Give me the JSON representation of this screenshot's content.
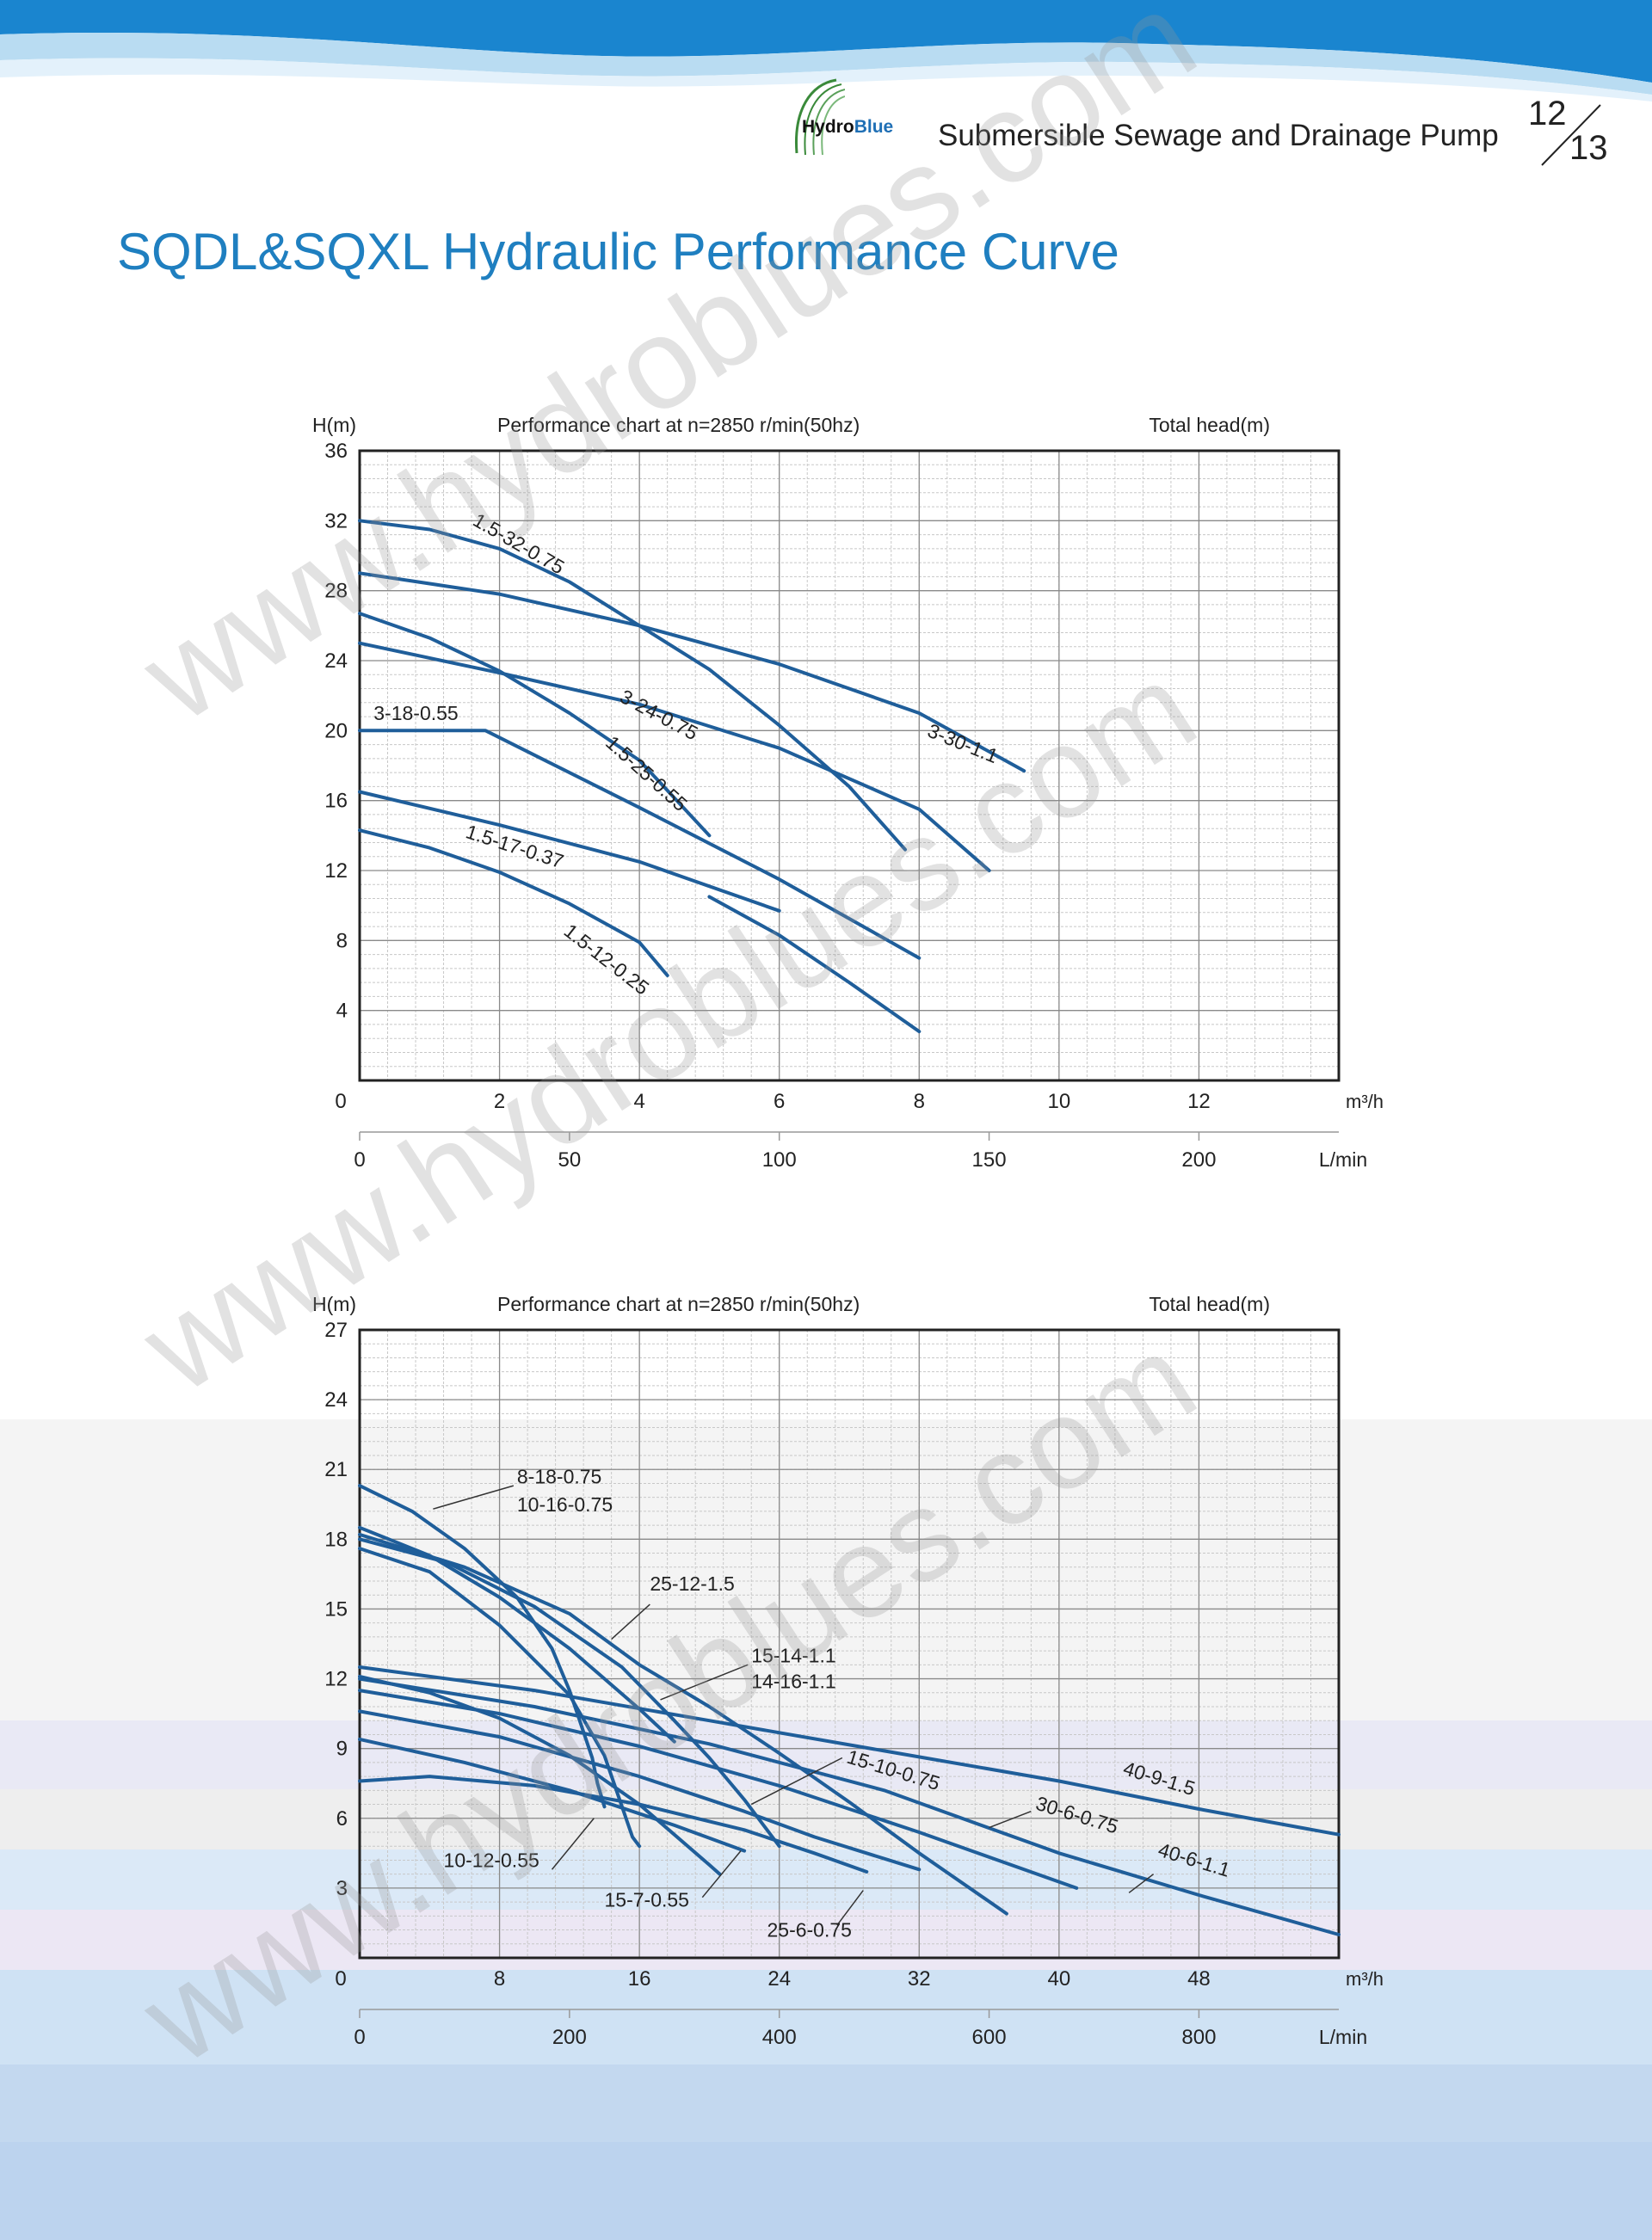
{
  "header": {
    "logo_text_1": "Hydro",
    "logo_text_2": "Blue",
    "title": "Submersible Sewage and Drainage Pump",
    "page_current": "12",
    "page_total": "13"
  },
  "main_title": "SQDL&SQXL Hydraulic Performance Curve",
  "watermark_text": "www.hydroblues.com",
  "colors": {
    "curve": "#1f5e9a",
    "grid_major": "#8a8a8a",
    "grid_minor": "#c8c8c8",
    "title": "#1f7fc0",
    "header_wave": "#1a85cf"
  },
  "chart_data": [
    {
      "type": "line",
      "title": "Performance chart at n=2850 r/min(50hz)",
      "right_note": "Total head(m)",
      "ylabel": "H(m)",
      "xlabel": "m³/h",
      "x2label": "L/min",
      "xlim": [
        0,
        14
      ],
      "ylim": [
        0,
        36
      ],
      "x_ticks": [
        "0",
        "2",
        "4",
        "6",
        "8",
        "10",
        "12"
      ],
      "y_ticks": [
        "4",
        "8",
        "12",
        "16",
        "20",
        "24",
        "28",
        "32",
        "36"
      ],
      "x2_ticks": [
        "0",
        "50",
        "100",
        "150",
        "200"
      ],
      "x2_tick_values": [
        0,
        50,
        100,
        150,
        200
      ],
      "grid": true,
      "series": [
        {
          "name": "1.5-32-0.75",
          "points": [
            [
              0,
              32
            ],
            [
              1,
              31.5
            ],
            [
              2,
              30.4
            ],
            [
              3,
              28.5
            ],
            [
              4,
              26
            ],
            [
              5,
              23.5
            ],
            [
              6,
              20.3
            ],
            [
              7,
              16.8
            ],
            [
              7.8,
              13.2
            ]
          ]
        },
        {
          "name": "3-30-1.1",
          "points": [
            [
              0,
              29
            ],
            [
              2,
              27.8
            ],
            [
              4,
              26
            ],
            [
              6,
              23.8
            ],
            [
              8,
              21
            ],
            [
              9.5,
              17.7
            ]
          ]
        },
        {
          "name": "3-24-0.75",
          "points": [
            [
              0,
              25
            ],
            [
              2,
              23.3
            ],
            [
              4,
              21.5
            ],
            [
              6,
              19
            ],
            [
              8,
              15.5
            ],
            [
              9,
              12
            ]
          ]
        },
        {
          "name": "1.5-25-0.55",
          "points": [
            [
              0,
              26.7
            ],
            [
              1,
              25.3
            ],
            [
              2,
              23.4
            ],
            [
              3,
              21
            ],
            [
              4,
              18.3
            ],
            [
              5,
              14
            ]
          ]
        },
        {
          "name": "3-18-0.55",
          "points": [
            [
              0,
              20
            ],
            [
              1,
              20
            ],
            [
              1.8,
              20
            ],
            [
              2.5,
              18.6
            ],
            [
              4,
              15.6
            ],
            [
              6,
              11.5
            ],
            [
              8,
              7
            ]
          ]
        },
        {
          "name": "1.5-17-0.37",
          "points": [
            [
              0,
              16.5
            ],
            [
              2,
              14.6
            ],
            [
              4,
              12.5
            ],
            [
              6,
              9.7
            ]
          ]
        },
        {
          "name": "1.5-12-0.25",
          "points": [
            [
              0,
              14.3
            ],
            [
              1,
              13.3
            ],
            [
              2,
              11.9
            ],
            [
              3,
              10.1
            ],
            [
              4,
              7.9
            ],
            [
              4.4,
              6
            ]
          ]
        },
        {
          "name": "",
          "points": [
            [
              5,
              10.5
            ],
            [
              6,
              8.3
            ],
            [
              7,
              5.6
            ],
            [
              8,
              2.8
            ]
          ]
        }
      ],
      "labels": [
        {
          "text": "1.5-32-0.75",
          "x": 1.6,
          "y": 31.8,
          "rot": 30
        },
        {
          "text": "3-30-1.1",
          "x": 8.1,
          "y": 19.7,
          "rot": 22
        },
        {
          "text": "3-24-0.75",
          "x": 3.7,
          "y": 21.7,
          "rot": 28
        },
        {
          "text": "1.5-25-0.55",
          "x": 3.5,
          "y": 19.2,
          "rot": 42
        },
        {
          "text": "3-18-0.55",
          "x": 0.2,
          "y": 20.6,
          "rot": 0
        },
        {
          "text": "1.5-17-0.37",
          "x": 1.5,
          "y": 13.9,
          "rot": 18
        },
        {
          "text": "1.5-12-0.25",
          "x": 2.9,
          "y": 8.4,
          "rot": 38
        }
      ],
      "leaders": []
    },
    {
      "type": "line",
      "title": "Performance chart at n=2850 r/min(50hz)",
      "right_note": "Total head(m)",
      "ylabel": "H(m)",
      "xlabel": "m³/h",
      "x2label": "L/min",
      "xlim": [
        0,
        56
      ],
      "ylim": [
        0,
        27
      ],
      "x_ticks": [
        "0",
        "8",
        "16",
        "24",
        "32",
        "40",
        "48"
      ],
      "y_ticks": [
        "3",
        "6",
        "9",
        "12",
        "15",
        "18",
        "21",
        "24",
        "27"
      ],
      "x2_ticks": [
        "0",
        "200",
        "400",
        "600",
        "800"
      ],
      "x2_tick_values": [
        0,
        200,
        400,
        600,
        800
      ],
      "grid": true,
      "series": [
        {
          "name": "8-18-0.75",
          "points": [
            [
              0,
              20.3
            ],
            [
              3,
              19.2
            ],
            [
              6,
              17.6
            ],
            [
              9,
              15.5
            ],
            [
              11,
              13.3
            ],
            [
              12,
              11.5
            ],
            [
              13.3,
              8.6
            ],
            [
              13.6,
              7.5
            ],
            [
              14,
              6.5
            ]
          ]
        },
        {
          "name": "10-16-0.75",
          "points": [
            [
              0,
              18.5
            ],
            [
              4,
              17.3
            ],
            [
              8,
              15.5
            ],
            [
              12,
              13.3
            ],
            [
              16,
              10.7
            ],
            [
              18,
              9.3
            ]
          ]
        },
        {
          "name": "25-12-1.5",
          "points": [
            [
              0,
              18.2
            ],
            [
              6,
              16.8
            ],
            [
              12,
              14.8
            ],
            [
              16,
              12.6
            ],
            [
              20,
              10.8
            ],
            [
              24,
              8.8
            ],
            [
              28,
              6.7
            ],
            [
              32,
              4.5
            ],
            [
              37,
              1.9
            ]
          ]
        },
        {
          "name": "15-14-1.1",
          "points": [
            [
              0,
              18
            ],
            [
              5,
              17
            ],
            [
              10,
              15.1
            ],
            [
              15,
              12.5
            ],
            [
              18,
              10.2
            ],
            [
              20,
              8.6
            ],
            [
              22,
              6.8
            ],
            [
              24,
              4.8
            ]
          ]
        },
        {
          "name": "14-16-1.1",
          "points": [
            [
              0,
              17.6
            ],
            [
              4,
              16.6
            ],
            [
              8,
              14.3
            ],
            [
              12,
              11.3
            ],
            [
              14,
              8.7
            ],
            [
              15.6,
              5.2
            ],
            [
              16,
              4.8
            ]
          ]
        },
        {
          "name": "40-9-1.5",
          "points": [
            [
              0,
              12.5
            ],
            [
              10,
              11.5
            ],
            [
              20,
              10.2
            ],
            [
              30,
              8.9
            ],
            [
              40,
              7.6
            ],
            [
              48,
              6.4
            ],
            [
              56,
              5.3
            ]
          ]
        },
        {
          "name": "40-6-1.1",
          "points": [
            [
              0,
              12
            ],
            [
              10,
              10.8
            ],
            [
              20,
              9.2
            ],
            [
              30,
              7.2
            ],
            [
              40,
              4.5
            ],
            [
              48,
              2.7
            ],
            [
              56,
              1.0
            ]
          ]
        },
        {
          "name": "30-6-0.75",
          "points": [
            [
              0,
              11.5
            ],
            [
              8,
              10.5
            ],
            [
              16,
              9.1
            ],
            [
              24,
              7.4
            ],
            [
              32,
              5.4
            ],
            [
              38,
              3.8
            ],
            [
              41,
              3.0
            ]
          ]
        },
        {
          "name": "15-10-0.75",
          "points": [
            [
              0,
              10.6
            ],
            [
              8,
              9.5
            ],
            [
              16,
              7.8
            ],
            [
              22,
              6.3
            ],
            [
              26,
              5.2
            ],
            [
              32,
              3.8
            ]
          ]
        },
        {
          "name": "15-7-0.55",
          "points": [
            [
              0,
              9.4
            ],
            [
              6,
              8.4
            ],
            [
              12,
              7.2
            ],
            [
              18,
              5.7
            ],
            [
              22,
              4.6
            ]
          ]
        },
        {
          "name": "25-6-0.75",
          "points": [
            [
              0,
              7.6
            ],
            [
              4,
              7.8
            ],
            [
              10,
              7.4
            ],
            [
              16,
              6.6
            ],
            [
              22,
              5.5
            ],
            [
              26,
              4.5
            ],
            [
              29,
              3.7
            ]
          ]
        },
        {
          "name": "10-12-0.55",
          "points": [
            [
              0,
              12.1
            ],
            [
              4,
              11.4
            ],
            [
              8,
              10.3
            ],
            [
              12,
              8.7
            ],
            [
              16,
              6.6
            ],
            [
              20,
              4.0
            ],
            [
              20.6,
              3.6
            ]
          ]
        }
      ],
      "labels": [
        {
          "text": "8-18-0.75",
          "x": 9,
          "y": 20.4,
          "rot": 0
        },
        {
          "text": "10-16-0.75",
          "x": 9,
          "y": 19.2,
          "rot": 0
        },
        {
          "text": "25-12-1.5",
          "x": 16.6,
          "y": 15.8,
          "rot": 0
        },
        {
          "text": "15-14-1.1",
          "x": 22.4,
          "y": 12.7,
          "rot": 0
        },
        {
          "text": "14-16-1.1",
          "x": 22.4,
          "y": 11.6,
          "rot": 0
        },
        {
          "text": "40-9-1.5",
          "x": 43.6,
          "y": 7.9,
          "rot": 17
        },
        {
          "text": "30-6-0.75",
          "x": 38.6,
          "y": 6.4,
          "rot": 17
        },
        {
          "text": "40-6-1.1",
          "x": 45.6,
          "y": 4.4,
          "rot": 17
        },
        {
          "text": "15-10-0.75",
          "x": 27.8,
          "y": 8.4,
          "rot": 17
        },
        {
          "text": "10-12-0.55",
          "x": 4.8,
          "y": 3.9,
          "rot": 0
        },
        {
          "text": "15-7-0.55",
          "x": 14,
          "y": 2.2,
          "rot": 0
        },
        {
          "text": "25-6-0.75",
          "x": 23.3,
          "y": 0.9,
          "rot": 0
        }
      ],
      "leaders": [
        [
          [
            4.2,
            19.3
          ],
          [
            8.8,
            20.3
          ]
        ],
        [
          [
            14.4,
            13.7
          ],
          [
            16.6,
            15.2
          ]
        ],
        [
          [
            17.2,
            11.1
          ],
          [
            22.2,
            12.6
          ]
        ],
        [
          [
            22.4,
            6.6
          ],
          [
            27.6,
            8.6
          ]
        ],
        [
          [
            36,
            5.6
          ],
          [
            38.4,
            6.3
          ]
        ],
        [
          [
            44,
            2.8
          ],
          [
            45.4,
            3.6
          ]
        ],
        [
          [
            11,
            3.8
          ],
          [
            13.4,
            6.0
          ]
        ],
        [
          [
            19.6,
            2.6
          ],
          [
            21.8,
            4.6
          ]
        ],
        [
          [
            27.3,
            1.4
          ],
          [
            28.8,
            2.9
          ]
        ]
      ]
    }
  ]
}
